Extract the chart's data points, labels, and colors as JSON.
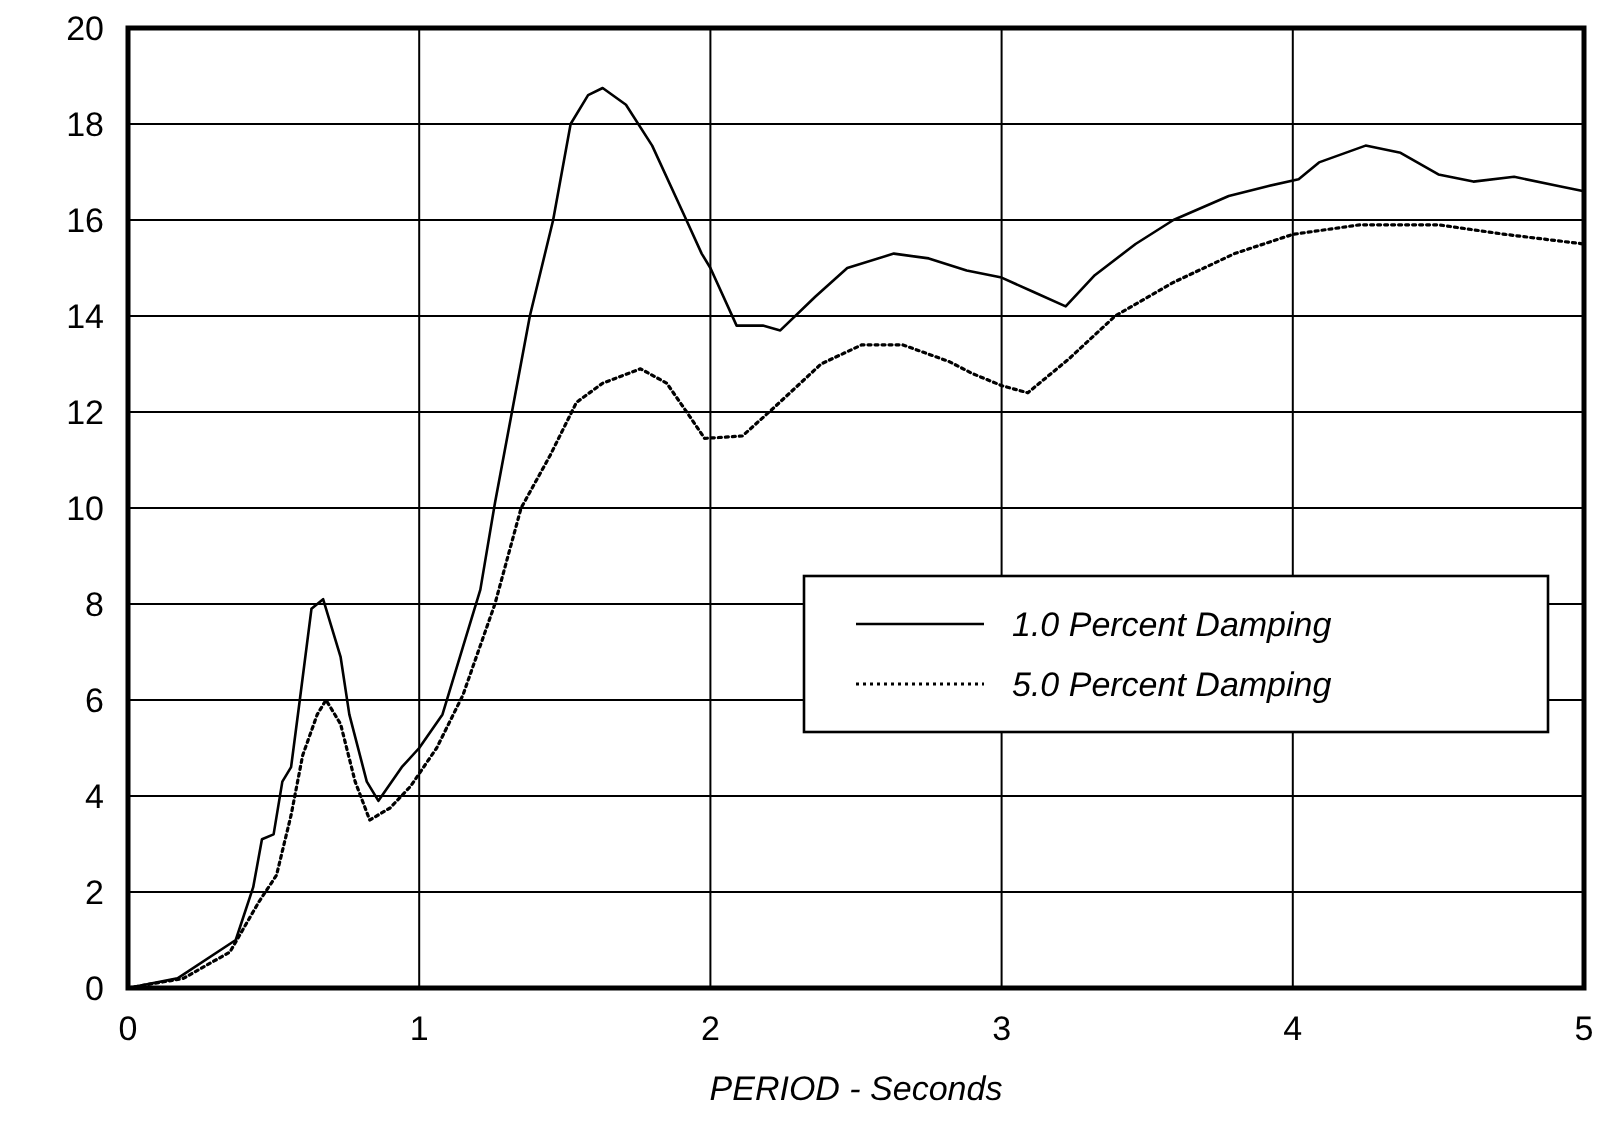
{
  "chart_data": {
    "type": "line",
    "xlabel": "PERIOD - Seconds",
    "xlim": [
      0,
      5
    ],
    "xticks": [
      0,
      1,
      2,
      3,
      4,
      5
    ],
    "ylim": [
      0,
      20
    ],
    "yticks": [
      0,
      2,
      4,
      6,
      8,
      10,
      12,
      14,
      16,
      18,
      20
    ],
    "grid": true,
    "legend": "right",
    "marker": "none",
    "series": [
      {
        "name": "1.0 Percent Damping",
        "color": "#000000",
        "line_style": "solid",
        "x": [
          0,
          0.17,
          0.37,
          0.43,
          0.46,
          0.5,
          0.53,
          0.56,
          0.59,
          0.63,
          0.67,
          0.73,
          0.76,
          0.82,
          0.86,
          0.94,
          1.0,
          1.08,
          1.15,
          1.21,
          1.26,
          1.38,
          1.46,
          1.52,
          1.58,
          1.63,
          1.71,
          1.8,
          1.91,
          1.97,
          2.0,
          2.09,
          2.18,
          2.24,
          2.36,
          2.47,
          2.63,
          2.75,
          2.88,
          3.0,
          3.11,
          3.22,
          3.32,
          3.46,
          3.59,
          3.78,
          3.91,
          4.02,
          4.09,
          4.25,
          4.37,
          4.5,
          4.62,
          4.76,
          4.92,
          5.0
        ],
        "values": [
          0,
          0.2,
          1.0,
          2.1,
          3.1,
          3.2,
          4.3,
          4.6,
          6.0,
          7.9,
          8.1,
          6.9,
          5.7,
          4.3,
          3.9,
          4.6,
          5.0,
          5.7,
          7.1,
          8.3,
          10.1,
          14.0,
          16.0,
          18.0,
          18.6,
          18.75,
          18.4,
          17.55,
          16.1,
          15.3,
          15.0,
          13.8,
          13.8,
          13.7,
          14.4,
          15.0,
          15.3,
          15.2,
          14.95,
          14.8,
          14.5,
          14.2,
          14.85,
          15.5,
          16.0,
          16.5,
          16.7,
          16.85,
          17.2,
          17.55,
          17.4,
          16.95,
          16.8,
          16.9,
          16.7,
          16.6
        ]
      },
      {
        "name": "5.0 Percent Damping",
        "color": "#000000",
        "line_style": "dotted",
        "x": [
          0,
          0.19,
          0.35,
          0.45,
          0.51,
          0.56,
          0.6,
          0.65,
          0.68,
          0.73,
          0.78,
          0.83,
          0.9,
          0.97,
          1.06,
          1.15,
          1.26,
          1.35,
          1.45,
          1.54,
          1.63,
          1.76,
          1.85,
          1.93,
          1.98,
          2.11,
          2.22,
          2.38,
          2.52,
          2.66,
          2.82,
          2.9,
          3.0,
          3.09,
          3.23,
          3.39,
          3.59,
          3.8,
          4.0,
          4.23,
          4.5,
          4.73,
          5.0
        ],
        "values": [
          0,
          0.2,
          0.75,
          1.8,
          2.35,
          3.6,
          4.85,
          5.7,
          6.0,
          5.5,
          4.3,
          3.5,
          3.75,
          4.2,
          5.0,
          6.1,
          8.0,
          10.0,
          11.1,
          12.2,
          12.6,
          12.9,
          12.6,
          11.9,
          11.45,
          11.5,
          12.1,
          13.0,
          13.4,
          13.4,
          13.05,
          12.8,
          12.55,
          12.4,
          13.1,
          14.0,
          14.7,
          15.3,
          15.7,
          15.9,
          15.9,
          15.7,
          15.5
        ]
      }
    ]
  }
}
